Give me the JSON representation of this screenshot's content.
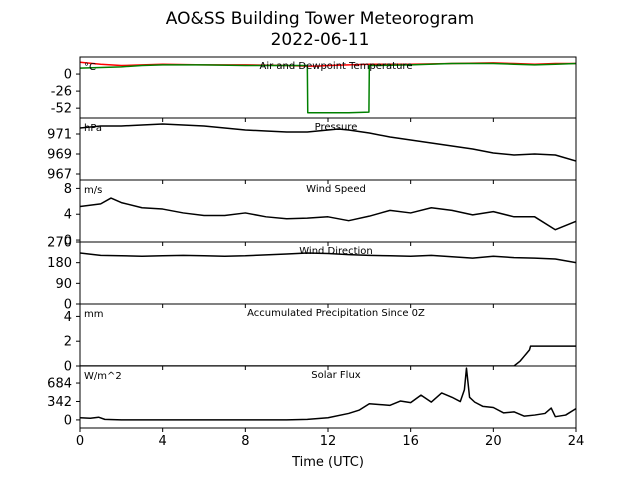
{
  "figure": {
    "title_line1": "AO&SS Building Tower Meteorogram",
    "title_line2": "2022-06-11",
    "xlabel": "Time (UTC)",
    "x_range": [
      0,
      24
    ],
    "x_ticks": [
      0,
      4,
      8,
      12,
      16,
      20,
      24
    ]
  },
  "chart_data": [
    {
      "id": "temperature",
      "type": "line",
      "title": "Air and Dewpoint Temperature",
      "unit": "°C",
      "ylim": [
        -67,
        26
      ],
      "yticks": [
        0,
        -26,
        -52
      ],
      "series": [
        {
          "color": "#ff0000",
          "x": [
            0,
            1,
            2,
            3,
            4,
            6,
            8,
            10,
            11,
            11.5,
            12,
            13,
            14,
            16,
            18,
            20,
            21,
            22,
            23,
            24
          ],
          "y": [
            18,
            15,
            13,
            14,
            15,
            14,
            14,
            13,
            12,
            12,
            13,
            14,
            15,
            15,
            16,
            17,
            16,
            15,
            16,
            16
          ]
        },
        {
          "color": "#008000",
          "x": [
            0,
            1,
            2,
            3,
            4,
            6,
            8,
            10,
            11,
            11.02,
            13,
            13.98,
            14,
            16,
            18,
            20,
            21,
            22,
            23,
            24
          ],
          "y": [
            9,
            10,
            11,
            13,
            14,
            14,
            13,
            13,
            13,
            -59,
            -59,
            -58,
            13,
            14,
            16,
            16,
            15,
            14,
            15,
            16
          ]
        }
      ]
    },
    {
      "id": "pressure",
      "type": "line",
      "title": "Pressure",
      "unit": "hPa",
      "ylim": [
        966.4,
        972.6
      ],
      "yticks": [
        971,
        969,
        967
      ],
      "series": [
        {
          "color": "#000000",
          "x": [
            0,
            1,
            2,
            3,
            4,
            5,
            6,
            7,
            8,
            9,
            10,
            11,
            12,
            12.5,
            13,
            14,
            15,
            16,
            17,
            18,
            19,
            20,
            21,
            22,
            23,
            24
          ],
          "y": [
            971.6,
            971.8,
            971.8,
            971.9,
            972.0,
            971.9,
            971.8,
            971.6,
            971.4,
            971.3,
            971.2,
            971.2,
            971.4,
            971.5,
            971.4,
            971.1,
            970.7,
            970.4,
            970.1,
            969.8,
            969.5,
            969.1,
            968.9,
            969.0,
            968.9,
            968.3
          ]
        }
      ]
    },
    {
      "id": "wind_speed",
      "type": "line",
      "title": "Wind Speed",
      "unit": "m/s",
      "ylim": [
        -0.3,
        9.3
      ],
      "yticks": [
        8,
        4,
        0
      ],
      "series": [
        {
          "color": "#000000",
          "x": [
            0,
            1,
            1.5,
            2,
            3,
            4,
            5,
            6,
            7,
            8,
            9,
            10,
            11,
            12,
            13,
            14,
            15,
            16,
            17,
            18,
            19,
            20,
            21,
            22,
            23,
            24
          ],
          "y": [
            5.2,
            5.6,
            6.5,
            5.8,
            5.0,
            4.8,
            4.2,
            3.8,
            3.8,
            4.2,
            3.6,
            3.3,
            3.4,
            3.6,
            3.0,
            3.7,
            4.6,
            4.2,
            5.0,
            4.6,
            3.9,
            4.4,
            3.6,
            3.6,
            1.6,
            2.9
          ]
        }
      ]
    },
    {
      "id": "wind_direction",
      "type": "line",
      "title": "Wind Direction",
      "unit": "",
      "ylim": [
        0,
        270
      ],
      "yticks": [
        270,
        180,
        90,
        0
      ],
      "series": [
        {
          "color": "#000000",
          "x": [
            0,
            1,
            2,
            3,
            4,
            5,
            6,
            7,
            8,
            9,
            10,
            11,
            12,
            13,
            14,
            15,
            16,
            17,
            18,
            19,
            20,
            21,
            22,
            23,
            24
          ],
          "y": [
            222,
            212,
            210,
            208,
            210,
            212,
            210,
            208,
            210,
            214,
            218,
            222,
            220,
            215,
            212,
            210,
            208,
            212,
            206,
            200,
            208,
            202,
            200,
            196,
            180
          ]
        }
      ]
    },
    {
      "id": "precipitation",
      "type": "line",
      "title": "Accumulated Precipitation Since 0Z",
      "unit": "mm",
      "ylim": [
        0,
        5
      ],
      "yticks": [
        4,
        2,
        0
      ],
      "series": [
        {
          "color": "#000000",
          "x": [
            0,
            21.0,
            21.3,
            21.5,
            21.6,
            21.75,
            21.8,
            24
          ],
          "y": [
            0,
            0,
            0.4,
            0.8,
            1.0,
            1.3,
            1.6,
            1.6
          ]
        }
      ]
    },
    {
      "id": "solar_flux",
      "type": "line",
      "title": "Solar Flux",
      "unit": "W/m^2",
      "ylim": [
        -150,
        1000
      ],
      "yticks": [
        684,
        342,
        0
      ],
      "series": [
        {
          "color": "#000000",
          "x": [
            0,
            0.5,
            0.9,
            1.2,
            2,
            4,
            6,
            8,
            10,
            11,
            12,
            13,
            13.5,
            14,
            15,
            15.5,
            16,
            16.5,
            17,
            17.5,
            18,
            18.4,
            18.6,
            18.7,
            18.85,
            19.1,
            19.5,
            20,
            20.5,
            21,
            21.5,
            22,
            22.5,
            22.8,
            23,
            23.5,
            24
          ],
          "y": [
            40,
            30,
            50,
            10,
            0,
            0,
            0,
            0,
            0,
            10,
            40,
            120,
            180,
            300,
            270,
            350,
            320,
            460,
            330,
            500,
            420,
            340,
            560,
            960,
            420,
            330,
            250,
            230,
            130,
            150,
            70,
            90,
            120,
            220,
            60,
            90,
            210
          ]
        }
      ]
    }
  ]
}
